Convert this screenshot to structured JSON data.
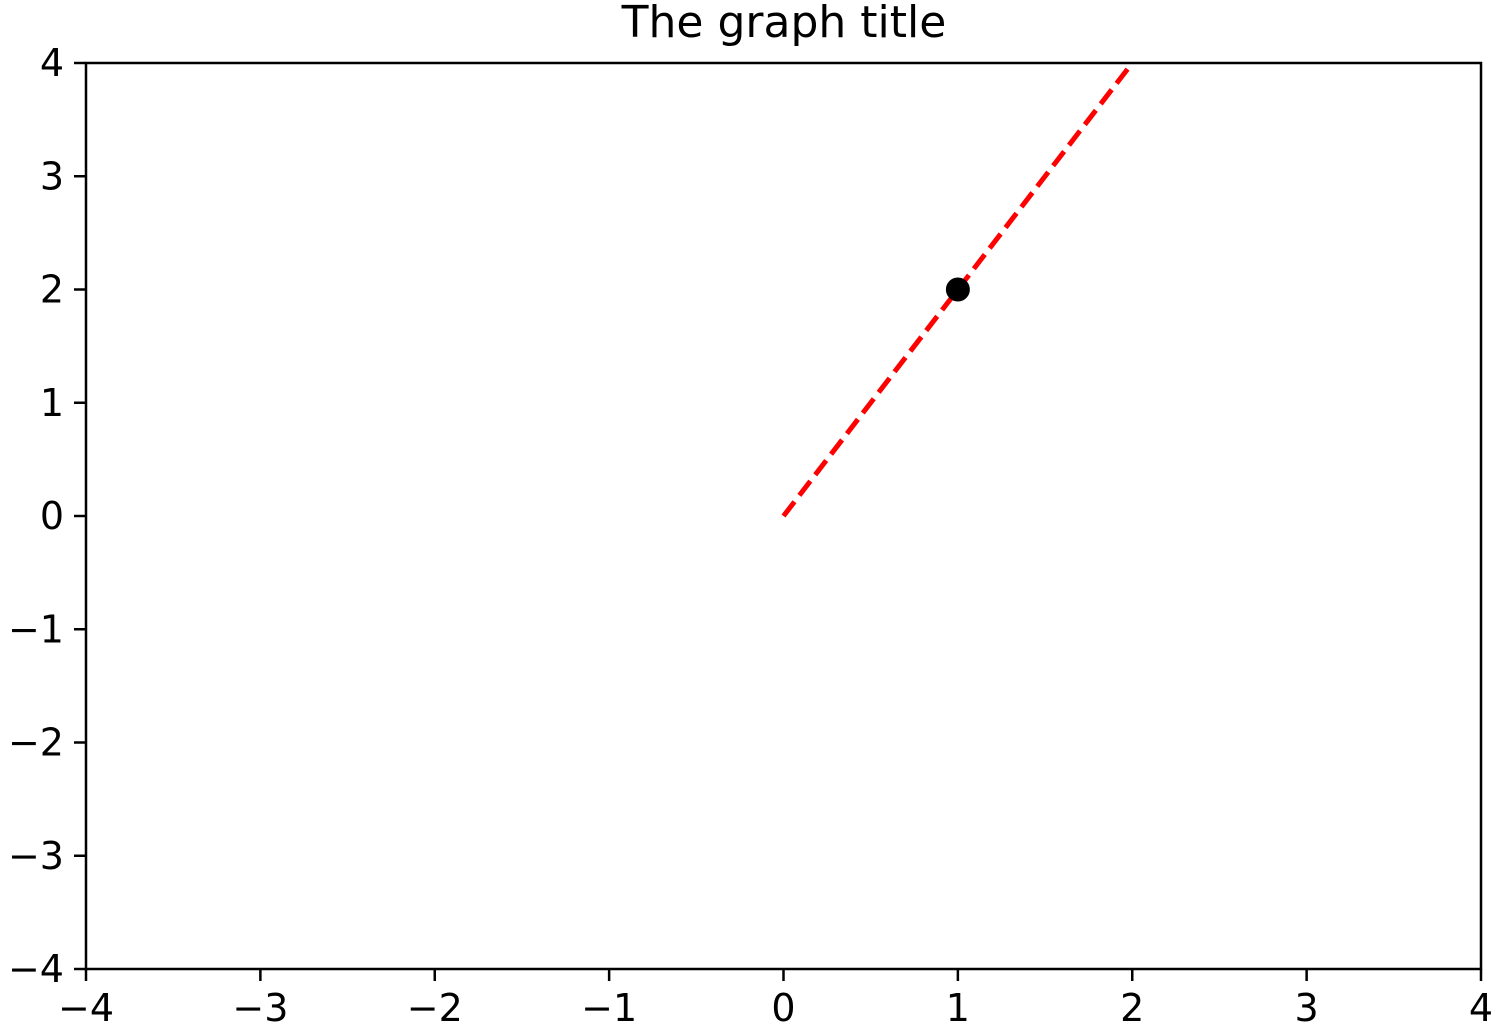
{
  "chart_data": {
    "type": "line",
    "title": "The graph title",
    "xlabel": "",
    "ylabel": "",
    "xlim": [
      -4,
      4
    ],
    "ylim": [
      -4,
      4
    ],
    "grid": false,
    "xticks": [
      -4,
      -3,
      -2,
      -1,
      0,
      1,
      2,
      3,
      4
    ],
    "yticks": [
      -4,
      -3,
      -2,
      -1,
      0,
      1,
      2,
      3,
      4
    ],
    "xtick_labels": [
      "−4",
      "−3",
      "−2",
      "−1",
      "0",
      "1",
      "2",
      "3",
      "4"
    ],
    "ytick_labels": [
      "−4",
      "−3",
      "−2",
      "−1",
      "0",
      "1",
      "2",
      "3",
      "4"
    ],
    "series": [
      {
        "kind": "line",
        "style": "dashed",
        "color": "#ff0000",
        "x": [
          0,
          2
        ],
        "y": [
          0,
          4
        ]
      },
      {
        "kind": "scatter",
        "color": "#000000",
        "x": [
          1
        ],
        "y": [
          2
        ]
      }
    ]
  }
}
